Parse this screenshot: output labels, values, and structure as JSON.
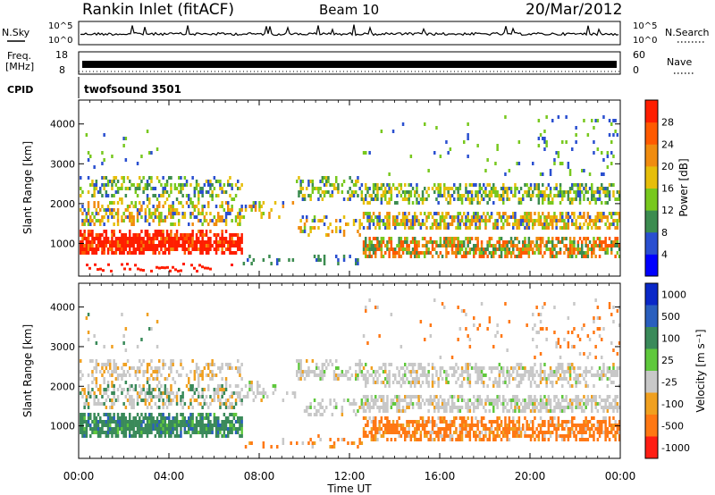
{
  "header": {
    "station": "Rankin Inlet (fitACF)",
    "beam": "Beam 10",
    "date": "20/Mar/2012"
  },
  "nsky_panel": {
    "left_label": "N.Sky",
    "left_ticks": [
      "10^5",
      "10^0"
    ],
    "right_label": "N.Search",
    "right_ticks": [
      "10^5",
      "10^0"
    ]
  },
  "freq_panel": {
    "left_label_1": "Freq.",
    "left_label_2": "[MHz]",
    "left_ticks": [
      "18",
      "8"
    ],
    "right_label": "Nave",
    "right_ticks": [
      "60",
      "0"
    ]
  },
  "cpid": {
    "label": "CPID",
    "value": "twofsound 3501"
  },
  "chart_data": [
    {
      "type": "heatmap",
      "name": "power",
      "ylabel": "Slant Range [km]",
      "yticks": [
        1000,
        2000,
        3000,
        4000
      ],
      "ylim": [
        180,
        4600
      ],
      "xlim_hours": [
        0,
        24
      ],
      "colorbar": {
        "label": "Power [dB]",
        "ticks": [
          "4",
          "8",
          "12",
          "16",
          "20",
          "24",
          "28"
        ],
        "colors": [
          "#0000ff",
          "#2a4fd0",
          "#3c8c50",
          "#78c81e",
          "#e6be0a",
          "#f08c0f",
          "#ff5a00",
          "#ff1e00"
        ]
      }
    },
    {
      "type": "heatmap",
      "name": "velocity",
      "ylabel": "Slant Range [km]",
      "yticks": [
        1000,
        2000,
        3000,
        4000
      ],
      "ylim": [
        180,
        4600
      ],
      "xlim_hours": [
        0,
        24
      ],
      "colorbar": {
        "label": "Velocity [m s⁻¹]",
        "ticks": [
          "1000",
          "500",
          "100",
          "25",
          "-25",
          "-100",
          "-500",
          "-1000"
        ],
        "colors": [
          "#0a28c8",
          "#2a5fbe",
          "#3a8a5a",
          "#5fc83c",
          "#c8c8c8",
          "#f0a020",
          "#ff7814",
          "#ff1e14"
        ]
      },
      "xticks": [
        "00:00",
        "04:00",
        "08:00",
        "12:00",
        "16:00",
        "20:00",
        "00:00"
      ],
      "xlabel": "Time UT"
    }
  ]
}
